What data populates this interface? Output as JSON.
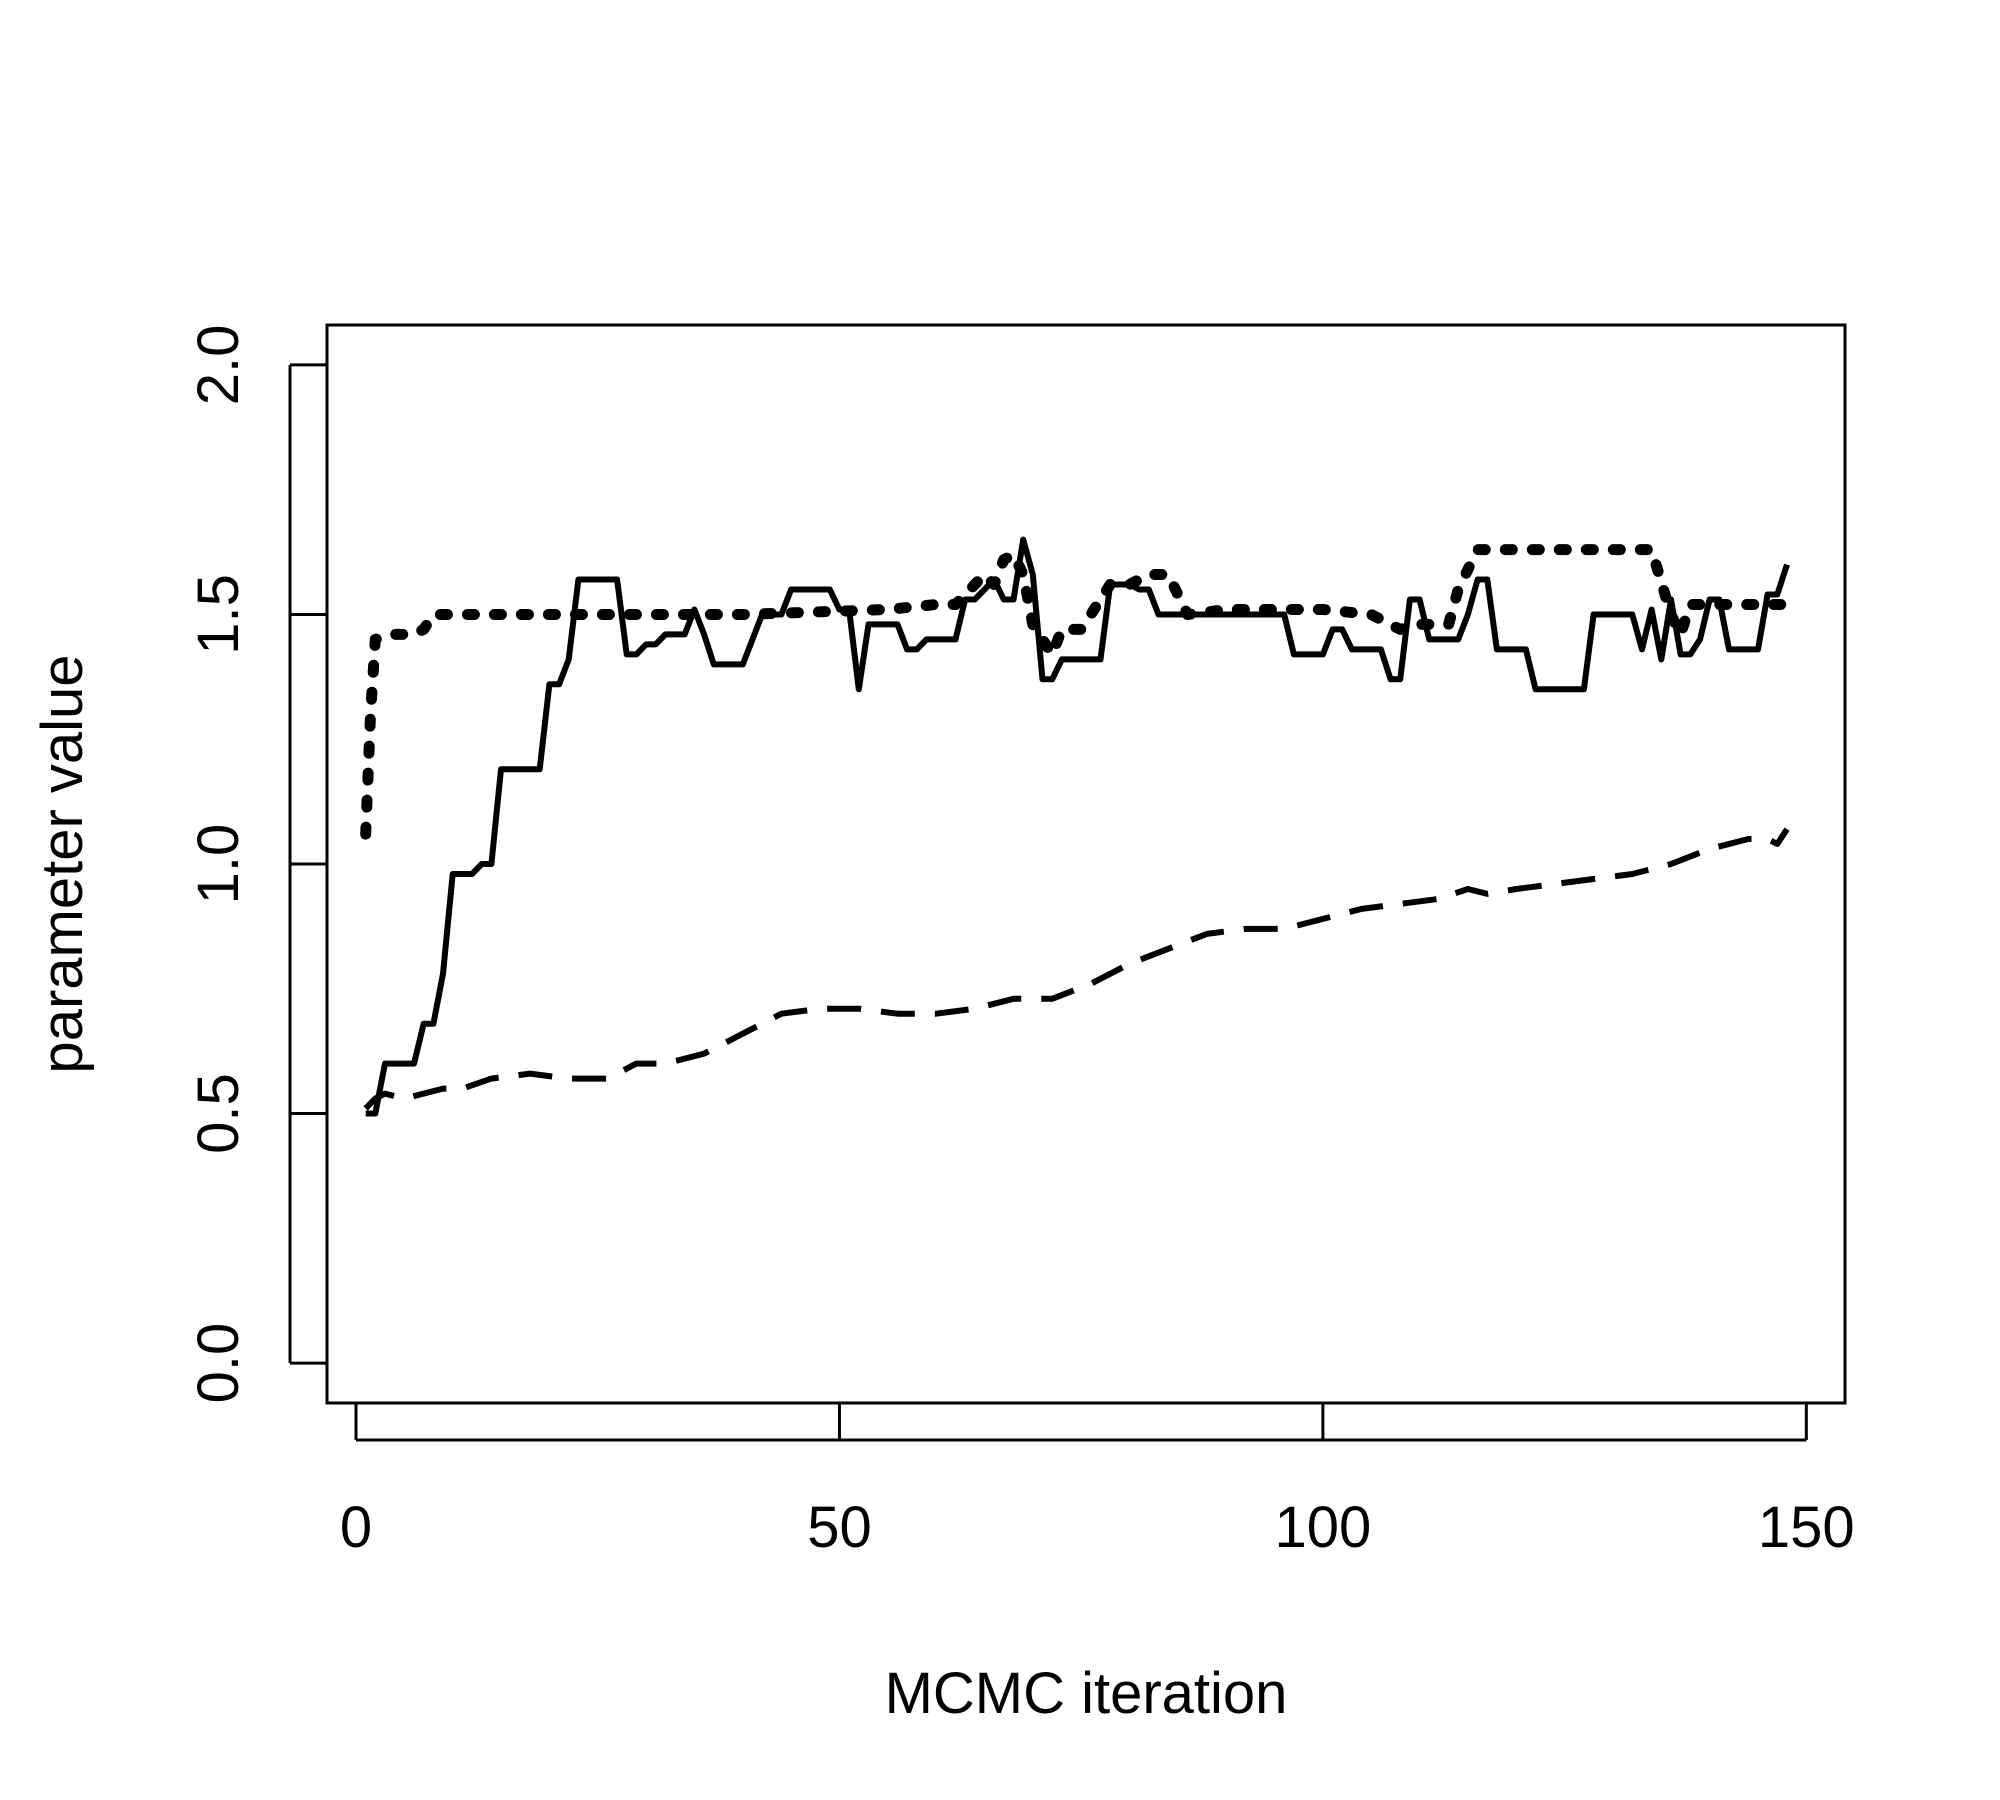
{
  "chart_data": {
    "type": "line",
    "title": "",
    "xlabel": "MCMC iteration",
    "ylabel": "parameter value",
    "xlim": [
      -3,
      154
    ],
    "ylim": [
      -0.08,
      2.08
    ],
    "grid": false,
    "legend": "none",
    "xticks": [
      0,
      50,
      100,
      150
    ],
    "xtick_labels": [
      "0",
      "50",
      "100",
      "150"
    ],
    "yticks": [
      0.0,
      0.5,
      1.0,
      1.5,
      2.0
    ],
    "ytick_labels": [
      "0.0",
      "0.5",
      "1.0",
      "1.5",
      "2.0"
    ],
    "series": [
      {
        "style": "solid",
        "color": "#000000",
        "points": [
          [
            1,
            0.5
          ],
          [
            2,
            0.5
          ],
          [
            3,
            0.6
          ],
          [
            5,
            0.6
          ],
          [
            6,
            0.6
          ],
          [
            7,
            0.68
          ],
          [
            8,
            0.68
          ],
          [
            9,
            0.78
          ],
          [
            10,
            0.98
          ],
          [
            12,
            0.98
          ],
          [
            13,
            1.0
          ],
          [
            14,
            1.0
          ],
          [
            15,
            1.19
          ],
          [
            18,
            1.19
          ],
          [
            19,
            1.19
          ],
          [
            20,
            1.36
          ],
          [
            21,
            1.36
          ],
          [
            22,
            1.41
          ],
          [
            23,
            1.57
          ],
          [
            27,
            1.57
          ],
          [
            28,
            1.42
          ],
          [
            29,
            1.42
          ],
          [
            30,
            1.44
          ],
          [
            31,
            1.44
          ],
          [
            32,
            1.46
          ],
          [
            34,
            1.46
          ],
          [
            35,
            1.51
          ],
          [
            36,
            1.46
          ],
          [
            37,
            1.4
          ],
          [
            40,
            1.4
          ],
          [
            42,
            1.5
          ],
          [
            44,
            1.5
          ],
          [
            45,
            1.55
          ],
          [
            49,
            1.55
          ],
          [
            50,
            1.51
          ],
          [
            51,
            1.51
          ],
          [
            52,
            1.35
          ],
          [
            53,
            1.48
          ],
          [
            56,
            1.48
          ],
          [
            57,
            1.43
          ],
          [
            58,
            1.43
          ],
          [
            59,
            1.45
          ],
          [
            62,
            1.45
          ],
          [
            63,
            1.53
          ],
          [
            64,
            1.53
          ],
          [
            65,
            1.55
          ],
          [
            66,
            1.57
          ],
          [
            67,
            1.53
          ],
          [
            68,
            1.53
          ],
          [
            69,
            1.65
          ],
          [
            70,
            1.58
          ],
          [
            71,
            1.37
          ],
          [
            72,
            1.37
          ],
          [
            73,
            1.41
          ],
          [
            77,
            1.41
          ],
          [
            78,
            1.56
          ],
          [
            79,
            1.56
          ],
          [
            80,
            1.56
          ],
          [
            81,
            1.55
          ],
          [
            82,
            1.55
          ],
          [
            83,
            1.5
          ],
          [
            87,
            1.5
          ],
          [
            88,
            1.5
          ],
          [
            89,
            1.5
          ],
          [
            90,
            1.5
          ],
          [
            96,
            1.5
          ],
          [
            97,
            1.42
          ],
          [
            100,
            1.42
          ],
          [
            101,
            1.47
          ],
          [
            102,
            1.47
          ],
          [
            103,
            1.43
          ],
          [
            106,
            1.43
          ],
          [
            107,
            1.37
          ],
          [
            108,
            1.37
          ],
          [
            109,
            1.53
          ],
          [
            110,
            1.53
          ],
          [
            111,
            1.45
          ],
          [
            113,
            1.45
          ],
          [
            114,
            1.45
          ],
          [
            115,
            1.5
          ],
          [
            116,
            1.57
          ],
          [
            117,
            1.57
          ],
          [
            118,
            1.43
          ],
          [
            121,
            1.43
          ],
          [
            122,
            1.35
          ],
          [
            127,
            1.35
          ],
          [
            128,
            1.5
          ],
          [
            132,
            1.5
          ],
          [
            133,
            1.43
          ],
          [
            134,
            1.51
          ],
          [
            135,
            1.41
          ],
          [
            136,
            1.53
          ],
          [
            137,
            1.42
          ],
          [
            138,
            1.42
          ],
          [
            139,
            1.45
          ],
          [
            140,
            1.53
          ],
          [
            141,
            1.53
          ],
          [
            142,
            1.43
          ],
          [
            145,
            1.43
          ],
          [
            146,
            1.54
          ],
          [
            147,
            1.54
          ],
          [
            148,
            1.6
          ]
        ]
      },
      {
        "style": "dotted",
        "color": "#000000",
        "points": [
          [
            1,
            1.06
          ],
          [
            1.5,
            1.3
          ],
          [
            2,
            1.45
          ],
          [
            4,
            1.46
          ],
          [
            6,
            1.46
          ],
          [
            7,
            1.47
          ],
          [
            8,
            1.5
          ],
          [
            12,
            1.5
          ],
          [
            20,
            1.5
          ],
          [
            40,
            1.5
          ],
          [
            55,
            1.51
          ],
          [
            60,
            1.52
          ],
          [
            62,
            1.52
          ],
          [
            64,
            1.56
          ],
          [
            65,
            1.58
          ],
          [
            66,
            1.56
          ],
          [
            67,
            1.61
          ],
          [
            68,
            1.62
          ],
          [
            69,
            1.58
          ],
          [
            70,
            1.48
          ],
          [
            71,
            1.45
          ],
          [
            72,
            1.42
          ],
          [
            73,
            1.47
          ],
          [
            75,
            1.47
          ],
          [
            78,
            1.56
          ],
          [
            80,
            1.56
          ],
          [
            82,
            1.58
          ],
          [
            84,
            1.58
          ],
          [
            86,
            1.5
          ],
          [
            90,
            1.51
          ],
          [
            100,
            1.51
          ],
          [
            105,
            1.5
          ],
          [
            108,
            1.47
          ],
          [
            110,
            1.48
          ],
          [
            113,
            1.48
          ],
          [
            114,
            1.55
          ],
          [
            116,
            1.63
          ],
          [
            125,
            1.63
          ],
          [
            134,
            1.63
          ],
          [
            136,
            1.5
          ],
          [
            137,
            1.46
          ],
          [
            138,
            1.52
          ],
          [
            142,
            1.52
          ],
          [
            146,
            1.52
          ],
          [
            148,
            1.52
          ]
        ]
      },
      {
        "style": "dashed",
        "color": "#000000",
        "points": [
          [
            1,
            0.51
          ],
          [
            2,
            0.53
          ],
          [
            3,
            0.54
          ],
          [
            5,
            0.53
          ],
          [
            7,
            0.54
          ],
          [
            9,
            0.55
          ],
          [
            11,
            0.55
          ],
          [
            14,
            0.57
          ],
          [
            18,
            0.58
          ],
          [
            22,
            0.57
          ],
          [
            26,
            0.57
          ],
          [
            29,
            0.6
          ],
          [
            32,
            0.6
          ],
          [
            36,
            0.62
          ],
          [
            40,
            0.66
          ],
          [
            44,
            0.7
          ],
          [
            48,
            0.71
          ],
          [
            52,
            0.71
          ],
          [
            56,
            0.7
          ],
          [
            60,
            0.7
          ],
          [
            64,
            0.71
          ],
          [
            68,
            0.73
          ],
          [
            72,
            0.73
          ],
          [
            76,
            0.76
          ],
          [
            80,
            0.8
          ],
          [
            84,
            0.83
          ],
          [
            88,
            0.86
          ],
          [
            92,
            0.87
          ],
          [
            96,
            0.87
          ],
          [
            100,
            0.89
          ],
          [
            104,
            0.91
          ],
          [
            108,
            0.92
          ],
          [
            112,
            0.93
          ],
          [
            115,
            0.95
          ],
          [
            117,
            0.94
          ],
          [
            120,
            0.95
          ],
          [
            124,
            0.96
          ],
          [
            128,
            0.97
          ],
          [
            132,
            0.98
          ],
          [
            136,
            1.0
          ],
          [
            140,
            1.03
          ],
          [
            144,
            1.05
          ],
          [
            146,
            1.05
          ],
          [
            147,
            1.04
          ],
          [
            148,
            1.07
          ]
        ]
      }
    ]
  }
}
